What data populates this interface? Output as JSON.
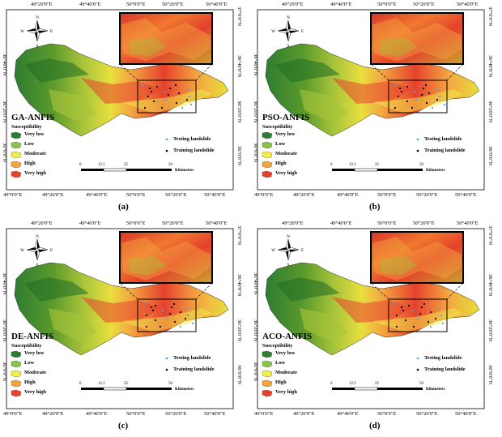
{
  "panels": [
    {
      "title": "GA-ANFIS",
      "caption": "(a)"
    },
    {
      "title": "PSO-ANFIS",
      "caption": "(b)"
    },
    {
      "title": "DE-ANFIS",
      "caption": "(c)"
    },
    {
      "title": "ACO-ANFIS",
      "caption": "(d)"
    }
  ],
  "axes": {
    "top_labels": [
      "49°20'0\"E",
      "49°40'0\"E",
      "50°0'0\"E",
      "50°20'0\"E",
      "50°40'0\"E"
    ],
    "bottom_labels": [
      "49°0'0\"E",
      "49°20'0\"E",
      "49°40'0\"E",
      "50°0'0\"E",
      "50°20'0\"E",
      "50°40'0\"E"
    ],
    "left_labels": [
      "36°40'0\"N",
      "36°20'0\"N",
      "36°0'0\"N"
    ],
    "right_labels": [
      "37°0'0\"N",
      "36°40'0\"N",
      "36°20'0\"N",
      "36°0'0\"N"
    ]
  },
  "legend": {
    "heading": "Susceptibility",
    "classes": [
      {
        "label": "Very low",
        "color": "#2e7d32"
      },
      {
        "label": "Low",
        "color": "#8bc34a"
      },
      {
        "label": "Moderate",
        "color": "#f2ee4a"
      },
      {
        "label": "High",
        "color": "#f4a340"
      },
      {
        "label": "Very high",
        "color": "#e5412d"
      }
    ],
    "points": [
      {
        "label": "Testing landslide",
        "color": "#3fa9f5"
      },
      {
        "label": "Training landslide",
        "color": "#000000"
      }
    ]
  },
  "scale_bar": {
    "ticks": [
      "0",
      "12.5",
      "25",
      "50"
    ],
    "unit": "Kilometers"
  },
  "north_arrow": {
    "n": "N",
    "s": "S",
    "e": "E",
    "w": "W"
  }
}
